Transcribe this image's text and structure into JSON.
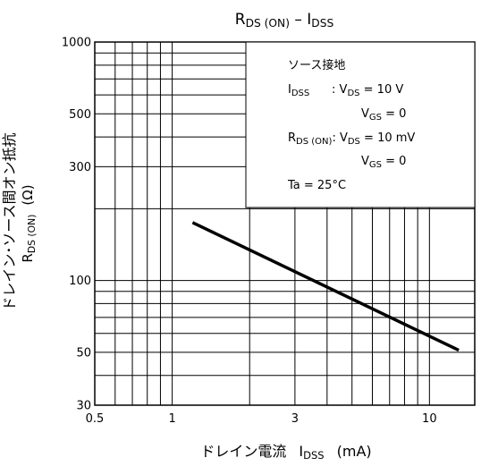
{
  "chart_data": {
    "type": "line",
    "title": {
      "main": "R",
      "main_sub": "DS (ON)",
      "dash": " – I",
      "tail_sub": "DSS"
    },
    "xlabel": {
      "main": "ドレイン電流",
      "var": "I",
      "var_sub": "DSS",
      "unit": "(mA)"
    },
    "ylabel": {
      "line1": "ドレイン･ソース間オン抵抗",
      "line2_main": "R",
      "line2_sub": "DS (ON)",
      "unit": "(Ω)"
    },
    "x_scale": "log",
    "y_scale": "log",
    "xlim": [
      0.5,
      15
    ],
    "ylim": [
      30,
      1000
    ],
    "x_ticks": [
      {
        "value": 0.5,
        "label": "0.5"
      },
      {
        "value": 1,
        "label": "1"
      },
      {
        "value": 3,
        "label": "3"
      },
      {
        "value": 10,
        "label": "10"
      }
    ],
    "y_ticks": [
      {
        "value": 1000,
        "label": "1000"
      },
      {
        "value": 500,
        "label": "500"
      },
      {
        "value": 300,
        "label": "300"
      },
      {
        "value": 100,
        "label": "100"
      },
      {
        "value": 50,
        "label": "50"
      },
      {
        "value": 30,
        "label": "30"
      }
    ],
    "grid": true,
    "series": [
      {
        "x": [
          1.2,
          13
        ],
        "y": [
          175,
          51
        ]
      }
    ],
    "conditions": {
      "heading": "ソース接地",
      "lines": [
        [
          {
            "t": "I"
          },
          {
            "t": "DSS",
            "sub": true
          },
          {
            "t": "      : V"
          },
          {
            "t": "DS",
            "sub": true
          },
          {
            "t": " = 10 V"
          }
        ],
        [
          {
            "t": "V"
          },
          {
            "t": "GS",
            "sub": true
          },
          {
            "t": " = 0"
          }
        ],
        [
          {
            "t": "R"
          },
          {
            "t": "DS (ON)",
            "sub": true
          },
          {
            "t": ": V"
          },
          {
            "t": "DS",
            "sub": true
          },
          {
            "t": " = 10 mV"
          }
        ],
        [
          {
            "t": "V"
          },
          {
            "t": "GS",
            "sub": true
          },
          {
            "t": " = 0"
          }
        ],
        [
          {
            "t": "Ta = 25°C"
          }
        ]
      ]
    }
  }
}
